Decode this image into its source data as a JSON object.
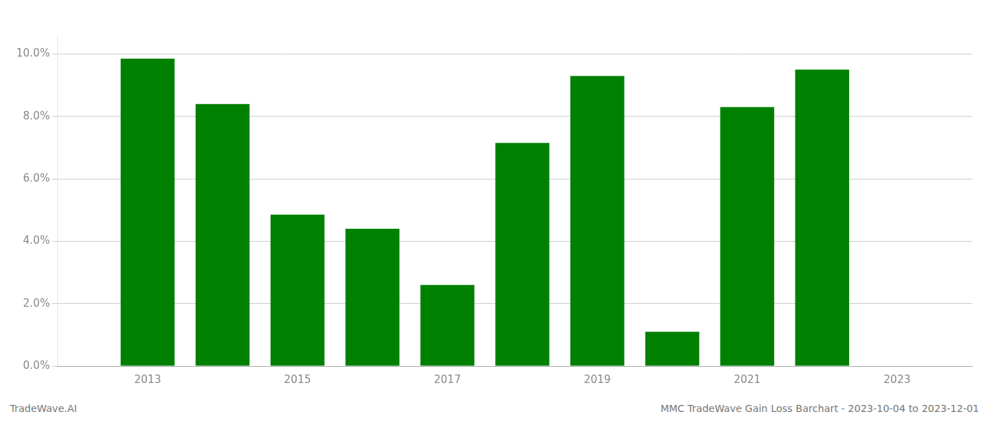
{
  "chart_data": {
    "type": "bar",
    "x": [
      2013,
      2014,
      2015,
      2016,
      2017,
      2018,
      2019,
      2020,
      2021,
      2022
    ],
    "values": [
      0.0985,
      0.084,
      0.0485,
      0.044,
      0.026,
      0.0715,
      0.093,
      0.011,
      0.083,
      0.095
    ],
    "color": "#008000",
    "xlim": [
      2011.8,
      2024.0
    ],
    "xticks": [
      2013,
      2015,
      2017,
      2019,
      2021,
      2023
    ],
    "ylim": [
      0,
      0.106
    ],
    "yticks": [
      {
        "value": 0.0,
        "label": "0.0%"
      },
      {
        "value": 0.02,
        "label": "2.0%"
      },
      {
        "value": 0.04,
        "label": "4.0%"
      },
      {
        "value": 0.06,
        "label": "6.0%"
      },
      {
        "value": 0.08,
        "label": "8.0%"
      },
      {
        "value": 0.1,
        "label": "10.0%"
      }
    ],
    "grid": true,
    "annotations": [
      "TradeWave.AI",
      "MMC TradeWave Gain Loss Barchart - 2023-10-04 to 2023-12-01"
    ]
  }
}
